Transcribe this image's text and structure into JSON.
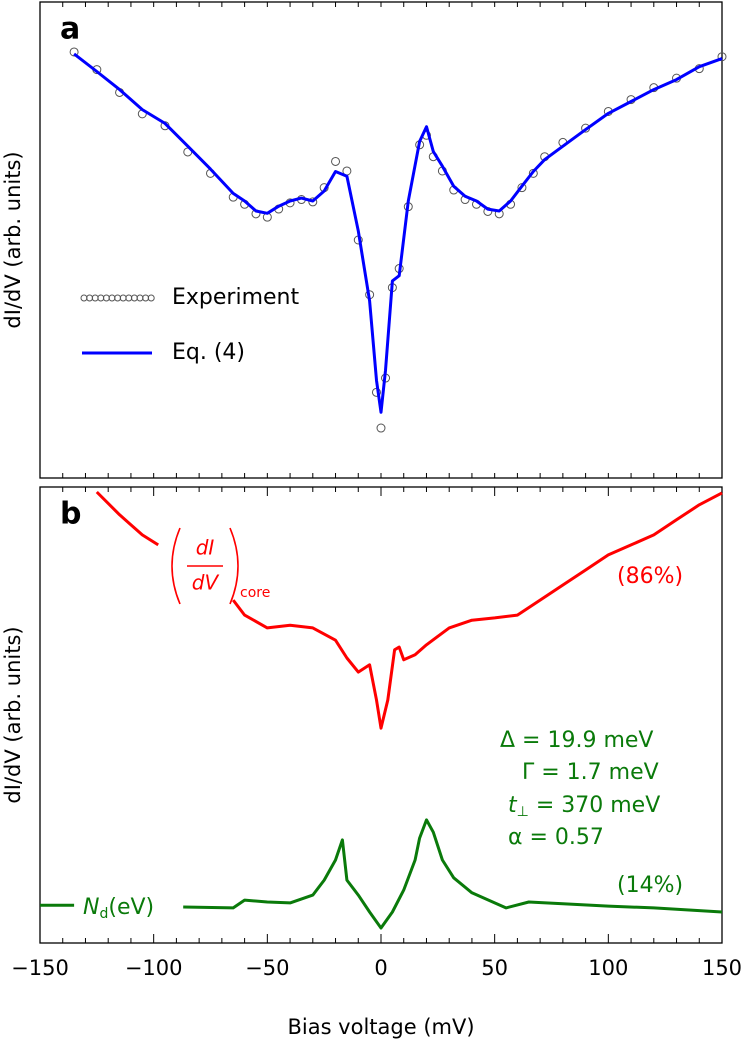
{
  "chart_data": [
    {
      "type": "line",
      "panel_label": "a",
      "ylabel": "dI/dV (arb. units)",
      "xlim": [
        -150,
        150
      ],
      "ylim": [
        0,
        100
      ],
      "minor_xticks": [
        -140,
        -130,
        -120,
        -110,
        -100,
        -90,
        -80,
        -70,
        -60,
        -50,
        -40,
        -30,
        -20,
        -10,
        0,
        10,
        20,
        30,
        40,
        50,
        60,
        70,
        80,
        90,
        100,
        110,
        120,
        130,
        140
      ],
      "series": [
        {
          "name": "Experiment",
          "kind": "scatter",
          "color": "#555555",
          "x": [
            -135,
            -125,
            -115,
            -105,
            -95,
            -85,
            -75,
            -65,
            -60,
            -55,
            -50,
            -45,
            -40,
            -35,
            -30,
            -25,
            -20,
            -15,
            -10,
            -5,
            -2,
            0,
            2,
            5,
            8,
            12,
            17,
            20,
            23,
            27,
            32,
            37,
            42,
            47,
            52,
            57,
            62,
            67,
            72,
            80,
            90,
            100,
            110,
            120,
            130,
            140,
            150
          ],
          "values": [
            89.5,
            85.8,
            81.0,
            76.5,
            74.0,
            68.5,
            64.0,
            59.0,
            57.5,
            55.5,
            54.8,
            56.5,
            57.8,
            58.5,
            58.0,
            61.0,
            66.5,
            64.5,
            50.0,
            38.5,
            18.0,
            10.5,
            21.0,
            40.0,
            44.0,
            57.0,
            70.0,
            72.0,
            67.5,
            64.5,
            60.5,
            58.5,
            57.5,
            56.0,
            55.5,
            57.5,
            61.0,
            64.0,
            67.5,
            70.5,
            73.5,
            77.0,
            79.5,
            82.0,
            84.0,
            86.0,
            88.5
          ]
        },
        {
          "name": "Eq. (4)",
          "kind": "line",
          "color": "#0000ff",
          "x": [
            -135,
            -125,
            -115,
            -105,
            -95,
            -85,
            -75,
            -65,
            -60,
            -55,
            -50,
            -45,
            -40,
            -35,
            -30,
            -25,
            -20,
            -15,
            -10,
            -5,
            -2,
            0,
            2,
            5,
            8,
            12,
            17,
            20,
            23,
            27,
            32,
            37,
            42,
            47,
            52,
            57,
            62,
            67,
            72,
            80,
            90,
            100,
            110,
            120,
            130,
            140,
            150
          ],
          "values": [
            89.1,
            85.4,
            81.6,
            77.4,
            74.5,
            69.7,
            64.9,
            59.8,
            58.2,
            56.1,
            55.6,
            57.1,
            58.2,
            58.8,
            58.2,
            60.3,
            64.4,
            63.4,
            51.9,
            37.2,
            20.5,
            13.8,
            22.6,
            41.4,
            42.5,
            58.2,
            70.7,
            73.8,
            68.6,
            65.5,
            61.3,
            59.2,
            58.2,
            56.5,
            56.1,
            58.2,
            61.3,
            64.4,
            66.9,
            69.7,
            73.2,
            76.6,
            79.1,
            81.6,
            83.7,
            86.4,
            88.1
          ]
        }
      ]
    },
    {
      "type": "line",
      "panel_label": "b",
      "ylabel": "dI/dV (arb. units)",
      "xlabel": "Bias voltage (mV)",
      "xlim": [
        -150,
        150
      ],
      "ylim": [
        0,
        100
      ],
      "xticks": [
        {
          "value": -150,
          "label": "−150"
        },
        {
          "value": -100,
          "label": "−100"
        },
        {
          "value": -50,
          "label": "−50"
        },
        0,
        50,
        100,
        150
      ],
      "minor_xticks": [
        -140,
        -130,
        -120,
        -110,
        -90,
        -80,
        -70,
        -60,
        -40,
        -30,
        -20,
        -10,
        10,
        20,
        30,
        40,
        60,
        70,
        80,
        90,
        110,
        120,
        130,
        140
      ],
      "series": [
        {
          "kind": "line",
          "color": "#ff0000",
          "x": [
            -125,
            -115,
            -105,
            -98,
            -90,
            -80,
            -65,
            -60,
            -50,
            -40,
            -30,
            -20,
            -15,
            -10,
            -5,
            -2,
            0,
            3,
            6,
            8,
            10,
            15,
            20,
            30,
            40,
            50,
            60,
            70,
            80,
            90,
            100,
            110,
            120,
            130,
            140,
            150
          ],
          "values": [
            98.9,
            93.9,
            89.5,
            87.3,
            null,
            null,
            75.2,
            71.9,
            69.1,
            69.7,
            69.1,
            66.4,
            62.5,
            59.4,
            61.0,
            53.3,
            47.1,
            53.3,
            64.3,
            64.9,
            62.1,
            63.2,
            65.4,
            69.1,
            70.8,
            71.3,
            71.9,
            75.2,
            78.5,
            81.8,
            85.1,
            87.3,
            89.5,
            92.8,
            96.1,
            98.7
          ]
        },
        {
          "kind": "line",
          "color": "#0a7a0a",
          "x": [
            -150,
            -135,
            -120,
            -100,
            -87,
            -65,
            -60,
            -50,
            -40,
            -30,
            -25,
            -20,
            -17,
            -15,
            -10,
            -5,
            0,
            5,
            10,
            15,
            17,
            20,
            23,
            27,
            32,
            40,
            50,
            55,
            65,
            80,
            100,
            120,
            150
          ],
          "values": [
            8.3,
            8.3,
            null,
            null,
            7.9,
            7.7,
            9.4,
            9.0,
            8.8,
            10.5,
            13.8,
            18.2,
            22.6,
            13.8,
            10.5,
            6.8,
            3.3,
            6.8,
            11.6,
            18.2,
            23.0,
            27.0,
            24.3,
            18.2,
            14.3,
            11.0,
            8.8,
            7.7,
            9.0,
            8.6,
            8.1,
            7.7,
            6.8
          ]
        }
      ],
      "annotations": [
        {
          "parts": [
            "dI",
            "dV",
            "core"
          ],
          "color": "#ff0000"
        },
        {
          "text": "(86%)",
          "color": "#ff0000"
        },
        {
          "text": "Δ = 19.9 meV",
          "color": "#0a7a0a"
        },
        {
          "text": "Γ = 1.7 meV",
          "color": "#0a7a0a"
        },
        {
          "parts": [
            "t",
            "⊥",
            " = 370 meV"
          ],
          "color": "#0a7a0a"
        },
        {
          "text": "α = 0.57",
          "color": "#0a7a0a"
        },
        {
          "text": "(14%)",
          "color": "#0a7a0a"
        },
        {
          "parts": [
            "N",
            "d",
            "(eV)"
          ],
          "color": "#0a7a0a"
        }
      ]
    }
  ]
}
